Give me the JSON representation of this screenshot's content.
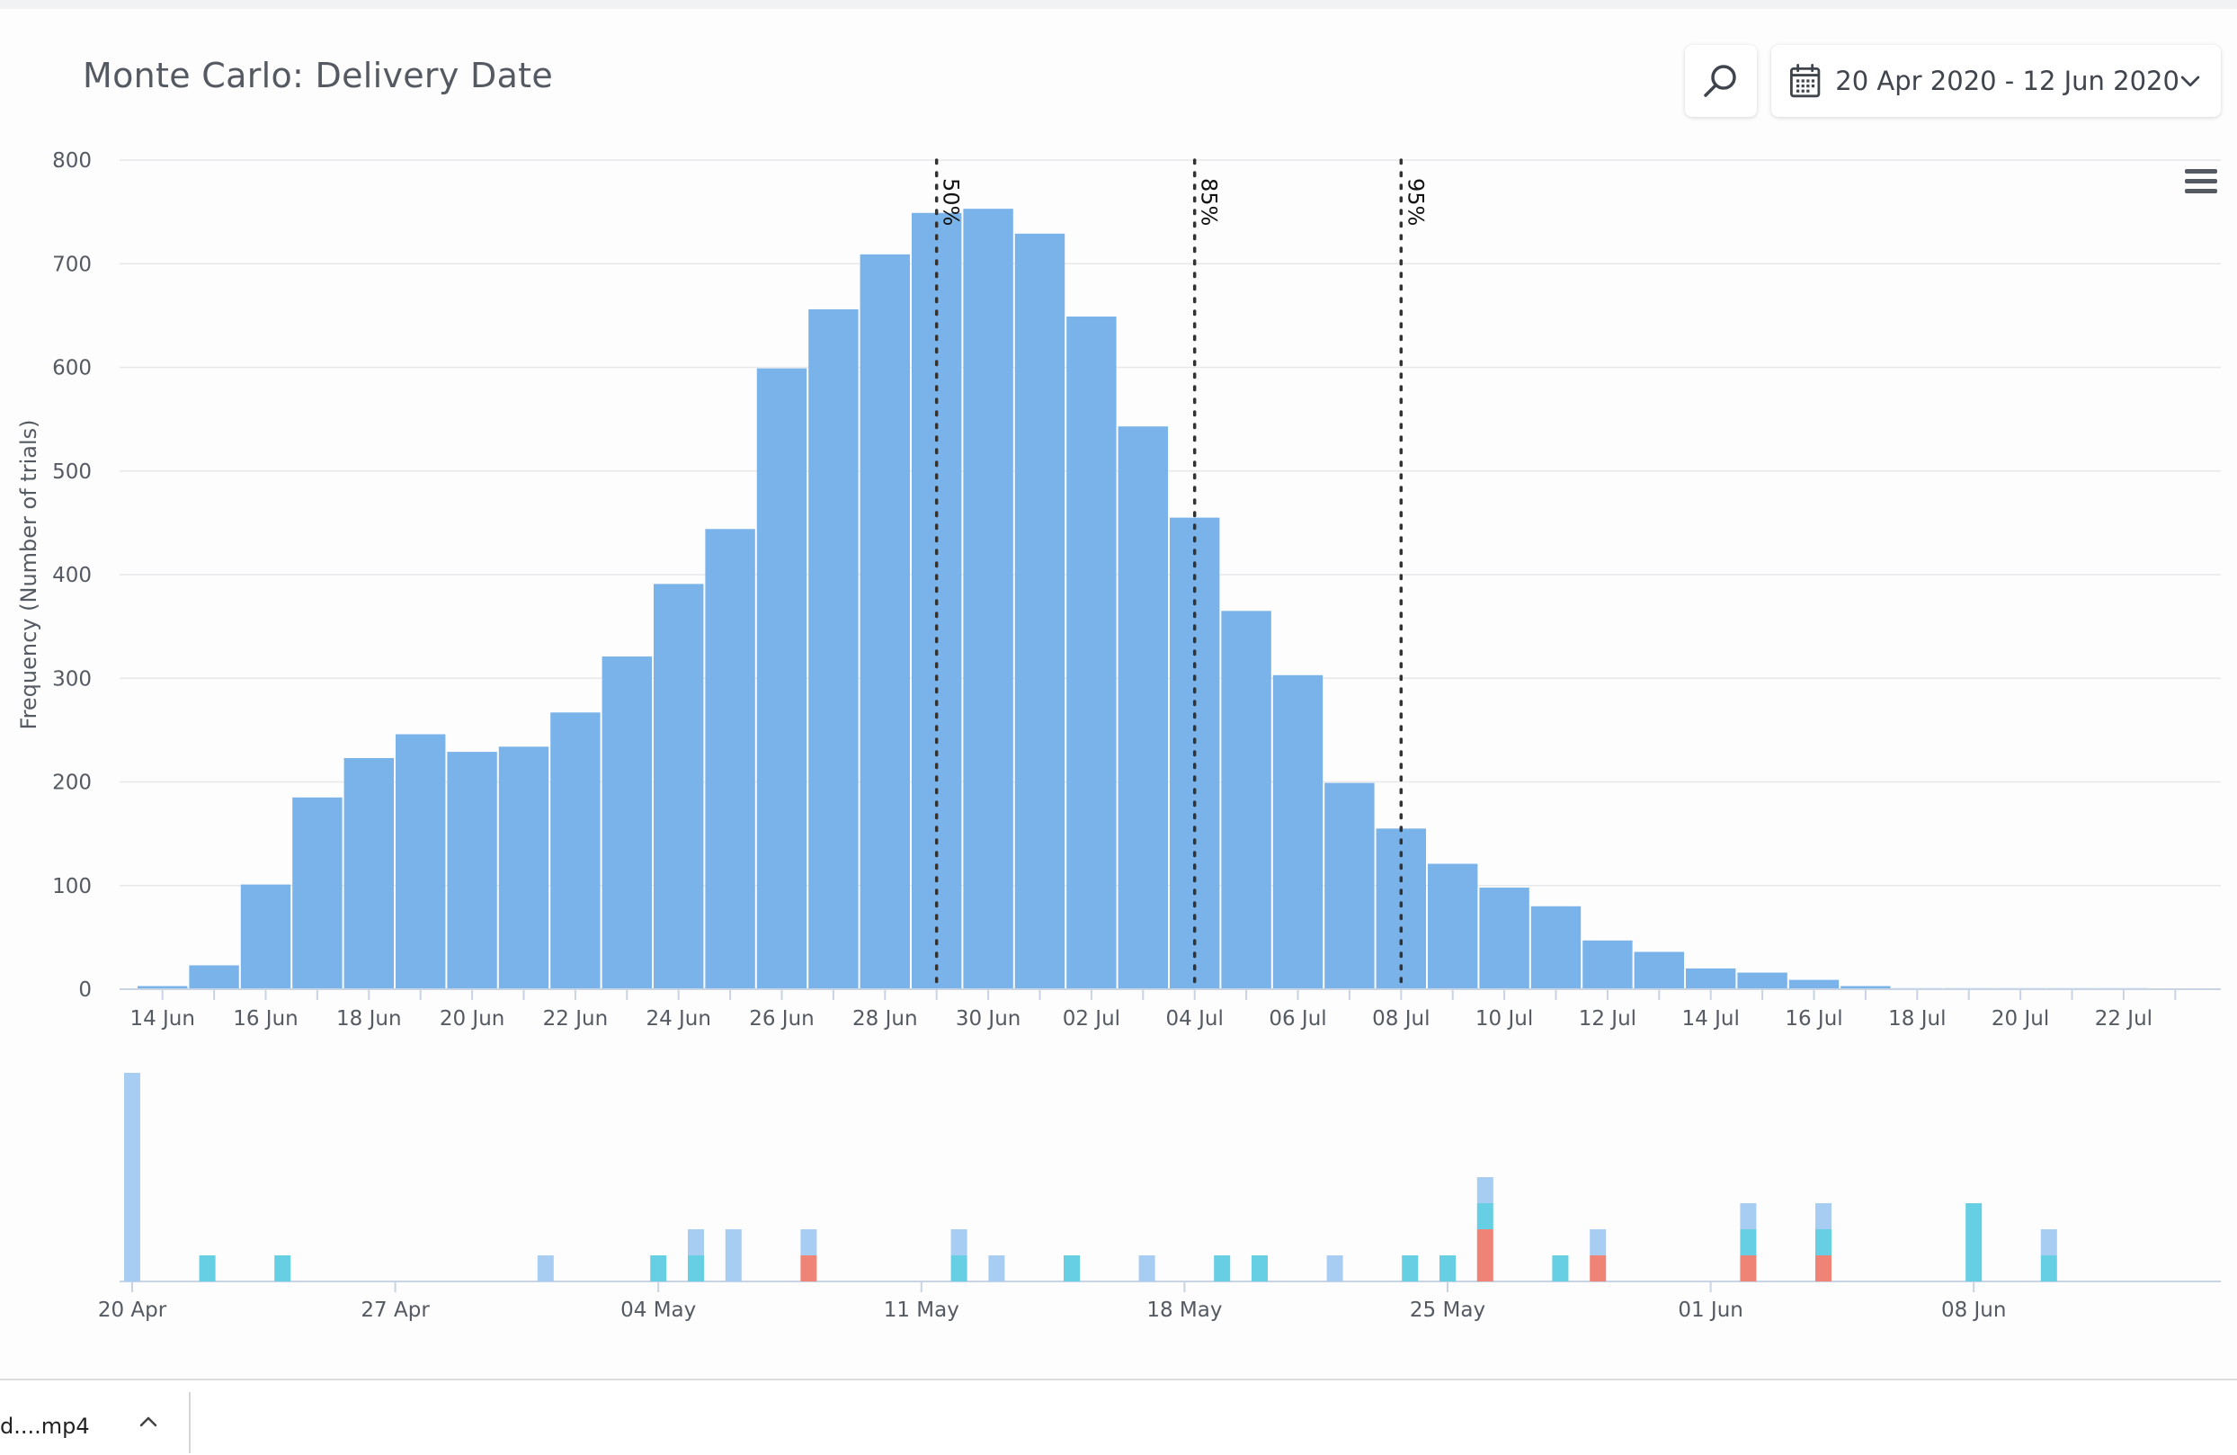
{
  "title": "Monte Carlo: Delivery Date",
  "date_range": {
    "label": "20 Apr 2020 - 12 Jun 2020"
  },
  "icons": {
    "search": "search-icon",
    "calendar": "calendar-icon",
    "dropdown": "chevron-down-icon",
    "menu": "hamburger-menu-icon",
    "download_toggle": "chevron-up-icon"
  },
  "download": {
    "filename": "d....mp4"
  },
  "colors": {
    "bar": "#7ab3ea",
    "navigator_light_blue": "#a8cdf2",
    "navigator_cyan": "#66cfe3",
    "navigator_red": "#ef8375",
    "percentile_line": "#333333"
  },
  "chart_data": [
    {
      "type": "bar",
      "title": "Monte Carlo: Delivery Date",
      "ylabel": "Frequency (Number of trials)",
      "xlabel": "",
      "ylim": [
        0,
        800
      ],
      "yticks": [
        0,
        100,
        200,
        300,
        400,
        500,
        600,
        700,
        800
      ],
      "xticks": [
        "14 Jun",
        "16 Jun",
        "18 Jun",
        "20 Jun",
        "22 Jun",
        "24 Jun",
        "26 Jun",
        "28 Jun",
        "30 Jun",
        "02 Jul",
        "04 Jul",
        "06 Jul",
        "08 Jul",
        "10 Jul",
        "12 Jul",
        "14 Jul",
        "16 Jul",
        "18 Jul",
        "20 Jul",
        "22 Jul"
      ],
      "grid": true,
      "categories": [
        "14 Jun",
        "15 Jun",
        "16 Jun",
        "17 Jun",
        "18 Jun",
        "19 Jun",
        "20 Jun",
        "21 Jun",
        "22 Jun",
        "23 Jun",
        "24 Jun",
        "25 Jun",
        "26 Jun",
        "27 Jun",
        "28 Jun",
        "29 Jun",
        "30 Jun",
        "01 Jul",
        "02 Jul",
        "03 Jul",
        "04 Jul",
        "05 Jul",
        "06 Jul",
        "07 Jul",
        "08 Jul",
        "09 Jul",
        "10 Jul",
        "11 Jul",
        "12 Jul",
        "13 Jul",
        "14 Jul",
        "15 Jul",
        "16 Jul",
        "17 Jul",
        "18 Jul",
        "19 Jul",
        "20 Jul",
        "21 Jul",
        "22 Jul",
        "23 Jul"
      ],
      "values": [
        3,
        23,
        101,
        185,
        223,
        246,
        229,
        234,
        267,
        321,
        391,
        444,
        599,
        656,
        709,
        749,
        753,
        729,
        649,
        543,
        455,
        365,
        303,
        199,
        155,
        121,
        98,
        80,
        47,
        36,
        20,
        16,
        9,
        3,
        1,
        1,
        1,
        1,
        1,
        0
      ],
      "percentiles": [
        {
          "label": "50%",
          "date": "29 Jun"
        },
        {
          "label": "85%",
          "date": "04 Jul"
        },
        {
          "label": "95%",
          "date": "08 Jul"
        }
      ]
    },
    {
      "type": "bar",
      "title": "",
      "stacked": true,
      "xticks": [
        "20 Apr",
        "27 Apr",
        "04 May",
        "11 May",
        "18 May",
        "25 May",
        "01 Jun",
        "08 Jun"
      ],
      "ylim": [
        0,
        8
      ],
      "series_colors": {
        "light": "#a8cdf2",
        "cyan": "#66cfe3",
        "red": "#ef8375"
      },
      "points": [
        {
          "date": "20 Apr",
          "light": 8,
          "cyan": 0,
          "red": 0
        },
        {
          "date": "22 Apr",
          "light": 0,
          "cyan": 1,
          "red": 0
        },
        {
          "date": "24 Apr",
          "light": 0,
          "cyan": 1,
          "red": 0
        },
        {
          "date": "01 May",
          "light": 1,
          "cyan": 0,
          "red": 0
        },
        {
          "date": "04 May",
          "light": 0,
          "cyan": 1,
          "red": 0
        },
        {
          "date": "05 May",
          "light": 1,
          "cyan": 1,
          "red": 0
        },
        {
          "date": "06 May",
          "light": 2,
          "cyan": 0,
          "red": 0
        },
        {
          "date": "08 May",
          "light": 1,
          "cyan": 0,
          "red": 1
        },
        {
          "date": "12 May",
          "light": 1,
          "cyan": 1,
          "red": 0
        },
        {
          "date": "13 May",
          "light": 1,
          "cyan": 0,
          "red": 0
        },
        {
          "date": "15 May",
          "light": 0,
          "cyan": 1,
          "red": 0
        },
        {
          "date": "17 May",
          "light": 1,
          "cyan": 0,
          "red": 0
        },
        {
          "date": "19 May",
          "light": 0,
          "cyan": 1,
          "red": 0
        },
        {
          "date": "20 May",
          "light": 0,
          "cyan": 1,
          "red": 0
        },
        {
          "date": "22 May",
          "light": 1,
          "cyan": 0,
          "red": 0
        },
        {
          "date": "24 May",
          "light": 0,
          "cyan": 1,
          "red": 0
        },
        {
          "date": "25 May",
          "light": 0,
          "cyan": 1,
          "red": 0
        },
        {
          "date": "26 May",
          "light": 1,
          "cyan": 1,
          "red": 2
        },
        {
          "date": "28 May",
          "light": 0,
          "cyan": 1,
          "red": 0
        },
        {
          "date": "29 May",
          "light": 1,
          "cyan": 0,
          "red": 1
        },
        {
          "date": "02 Jun",
          "light": 1,
          "cyan": 1,
          "red": 1
        },
        {
          "date": "04 Jun",
          "light": 1,
          "cyan": 1,
          "red": 1
        },
        {
          "date": "08 Jun",
          "light": 0,
          "cyan": 3,
          "red": 0
        },
        {
          "date": "10 Jun",
          "light": 1,
          "cyan": 1,
          "red": 0
        }
      ]
    }
  ]
}
